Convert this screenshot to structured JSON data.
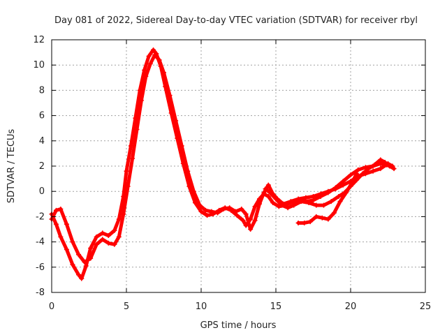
{
  "chart_data": {
    "type": "scatter",
    "title": "Day 081 of 2022, Sidereal Day-to-day VTEC variation (SDTVAR) for receiver rbyl",
    "xlabel": "GPS time / hours",
    "ylabel": "SDTVAR / TECUs",
    "xlim": [
      0,
      25
    ],
    "ylim": [
      -8,
      12
    ],
    "xticks": [
      "0",
      "5",
      "10",
      "15",
      "20",
      "25"
    ],
    "yticks": [
      "-8",
      "-6",
      "-4",
      "-2",
      "0",
      "2",
      "4",
      "6",
      "8",
      "10",
      "12"
    ],
    "grid": true,
    "marker": "+",
    "color": "#ff0000",
    "series": [
      {
        "name": "trace-1",
        "x": [
          0.0,
          0.3,
          0.6,
          1.0,
          1.4,
          1.8,
          2.0,
          2.3,
          2.6,
          3.0,
          3.4,
          3.8,
          4.2,
          4.5,
          4.8,
          5.0,
          5.3,
          5.6,
          5.9,
          6.2,
          6.5,
          6.8,
          7.0,
          7.3,
          7.6,
          8.0,
          8.4,
          8.8,
          9.2,
          9.6,
          10.0,
          10.4,
          10.8,
          11.2,
          11.6,
          12.0,
          12.4,
          12.8,
          13.0,
          13.3,
          13.6,
          13.9,
          14.2,
          14.5,
          14.8,
          15.2,
          15.6,
          16.0,
          16.5,
          17.0,
          17.5,
          18.0,
          18.5,
          19.0,
          19.5,
          20.0,
          20.5,
          21.0,
          21.5,
          22.0,
          22.4,
          22.8
        ],
        "y": [
          -1.8,
          -2.6,
          -3.6,
          -4.6,
          -5.8,
          -6.6,
          -6.9,
          -5.9,
          -4.5,
          -3.6,
          -3.3,
          -3.5,
          -3.1,
          -2.2,
          -0.4,
          1.6,
          3.6,
          5.8,
          8.0,
          9.6,
          10.7,
          11.2,
          10.9,
          9.9,
          8.3,
          6.2,
          4.2,
          2.2,
          0.4,
          -0.9,
          -1.6,
          -1.9,
          -1.8,
          -1.5,
          -1.3,
          -1.5,
          -1.9,
          -2.3,
          -2.7,
          -2.2,
          -1.2,
          -0.6,
          -0.2,
          -0.4,
          -0.9,
          -1.2,
          -1.1,
          -0.9,
          -0.7,
          -0.8,
          -0.7,
          -0.4,
          -0.1,
          0.3,
          0.8,
          1.3,
          1.7,
          1.9,
          2.0,
          2.2,
          2.1,
          1.9
        ]
      },
      {
        "name": "trace-2",
        "x": [
          0.0,
          0.3,
          0.6,
          1.0,
          1.4,
          1.8,
          2.2,
          2.6,
          3.0,
          3.4,
          3.8,
          4.2,
          4.5,
          4.8,
          5.1,
          5.4,
          5.7,
          6.0,
          6.3,
          6.6,
          6.9,
          7.2,
          7.5,
          7.9,
          8.3,
          8.7,
          9.1,
          9.5,
          9.9,
          10.3,
          10.7,
          11.1,
          11.5,
          11.9,
          12.3,
          12.7,
          13.0,
          13.3,
          13.6,
          13.9,
          14.2,
          14.5,
          14.8,
          15.1,
          15.5,
          16.0,
          16.5,
          17.0,
          17.5,
          18.0,
          18.5,
          19.0,
          19.5,
          20.0,
          20.5,
          21.0,
          21.5,
          22.0,
          22.5,
          22.8
        ],
        "y": [
          -2.2,
          -1.5,
          -1.4,
          -2.6,
          -4.0,
          -5.0,
          -5.6,
          -5.3,
          -4.2,
          -3.8,
          -4.1,
          -4.2,
          -3.6,
          -1.8,
          0.4,
          2.6,
          4.9,
          7.2,
          9.1,
          10.1,
          10.8,
          10.4,
          9.4,
          7.6,
          5.6,
          3.6,
          1.6,
          0.0,
          -1.1,
          -1.5,
          -1.6,
          -1.7,
          -1.4,
          -1.3,
          -1.6,
          -1.4,
          -1.8,
          -3.0,
          -2.3,
          -1.0,
          -0.1,
          0.5,
          -0.2,
          -0.6,
          -1.0,
          -0.8,
          -0.6,
          -0.5,
          -0.4,
          -0.2,
          -0.0,
          0.2,
          0.5,
          0.8,
          1.2,
          1.4,
          1.6,
          1.8,
          2.2,
          2.0
        ]
      },
      {
        "name": "trace-3",
        "x": [
          14.3,
          14.6,
          15.0,
          15.4,
          15.8,
          16.2,
          16.7,
          17.2,
          17.7,
          18.2,
          18.7,
          19.2,
          19.6,
          20.0,
          20.4,
          20.8,
          21.2,
          21.6,
          22.0,
          22.3,
          22.6,
          22.9
        ],
        "y": [
          0.2,
          -0.1,
          -0.6,
          -1.1,
          -1.3,
          -1.1,
          -0.8,
          -0.9,
          -1.1,
          -1.1,
          -0.8,
          -0.4,
          -0.1,
          0.4,
          0.9,
          1.4,
          1.8,
          2.1,
          2.5,
          2.3,
          2.0,
          1.8
        ]
      },
      {
        "name": "trace-4",
        "x": [
          16.5,
          16.9,
          17.3,
          17.7,
          18.1,
          18.5,
          18.9,
          19.3,
          19.7,
          20.1,
          20.4
        ],
        "y": [
          -2.5,
          -2.5,
          -2.4,
          -2.0,
          -2.1,
          -2.2,
          -1.7,
          -0.8,
          -0.1,
          0.7,
          1.4
        ]
      }
    ]
  }
}
